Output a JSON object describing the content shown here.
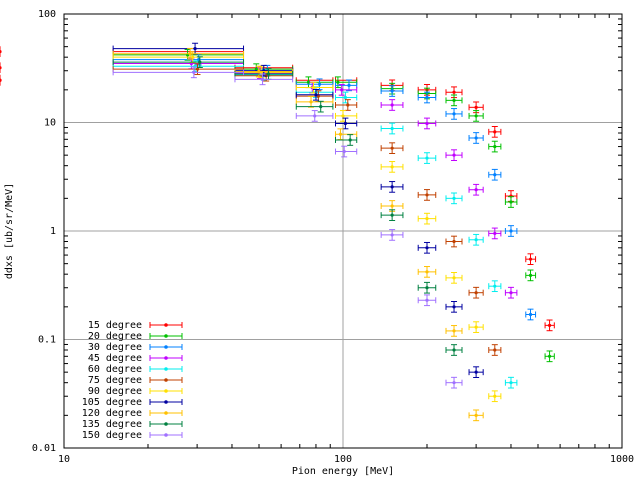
{
  "chart_data": {
    "type": "scatter",
    "xlabel": "Pion energy [MeV]",
    "ylabel": "ddxs [ub/sr/MeV]",
    "xscale": "log",
    "yscale": "log",
    "xlim": [
      10,
      1000
    ],
    "ylim": [
      0.01,
      100
    ],
    "grid": "major ticks",
    "legend_position": "bottom-left",
    "x_tick_labels": [
      "10",
      "100",
      "1000"
    ],
    "y_tick_labels": [
      "0.01",
      "0.1",
      "1",
      "10",
      "100"
    ],
    "series": [
      {
        "name": "15 degree",
        "color": "#ff0000",
        "marker": "plus",
        "x": [
          29.5,
          52,
          80,
          102,
          150,
          200,
          250,
          300,
          350,
          400,
          470,
          550
        ],
        "xerr": [
          [
            15,
            44
          ],
          [
            42,
            65
          ],
          [
            70,
            90
          ],
          [
            95,
            110
          ],
          [
            135,
            165
          ],
          [
            185,
            215
          ],
          [
            235,
            265
          ],
          [
            285,
            320
          ],
          [
            335,
            365
          ],
          [
            385,
            415
          ],
          [
            455,
            485
          ],
          [
            530,
            570
          ]
        ],
        "y": [
          45,
          32,
          24.5,
          24.5,
          22,
          20,
          19,
          13.8,
          8.2,
          2.1,
          0.55,
          0.135
        ]
      },
      {
        "name": "20 degree",
        "color": "#00c000",
        "marker": "cross",
        "x": [
          29.5,
          52,
          80,
          102,
          150,
          200,
          250,
          300,
          350,
          400,
          470,
          550
        ],
        "y": [
          42,
          31,
          23.5,
          23.5,
          20.5,
          18.5,
          16,
          11.5,
          6,
          1.85,
          0.39,
          0.07
        ]
      },
      {
        "name": "30 degree",
        "color": "#0080ff",
        "marker": "star",
        "x": [
          29.5,
          52,
          80,
          102,
          150,
          200,
          250,
          300,
          350,
          400,
          470
        ],
        "y": [
          38,
          30,
          22.5,
          22,
          19.5,
          17,
          12,
          7.2,
          3.3,
          1.0,
          0.17
        ]
      },
      {
        "name": "45 degree",
        "color": "#c000ff",
        "marker": "square",
        "x": [
          29.5,
          52,
          80,
          102,
          150,
          200,
          250,
          300,
          350,
          400
        ],
        "y": [
          35,
          28.5,
          21,
          20,
          14.5,
          9.8,
          5.0,
          2.4,
          0.95,
          0.27
        ]
      },
      {
        "name": "60 degree",
        "color": "#00eeee",
        "marker": "filled-square",
        "x": [
          29.5,
          52,
          80,
          102,
          150,
          200,
          250,
          300,
          350,
          400
        ],
        "y": [
          33,
          27.5,
          19,
          17,
          8.8,
          4.7,
          2.0,
          0.83,
          0.31,
          0.04
        ]
      },
      {
        "name": "75 degree",
        "color": "#c04000",
        "marker": "circle",
        "x": [
          29.5,
          52,
          80,
          102,
          150,
          200,
          250,
          300,
          350
        ],
        "y": [
          31,
          27,
          17.5,
          14.5,
          5.8,
          2.15,
          0.8,
          0.27,
          0.08
        ]
      },
      {
        "name": "90 degree",
        "color": "#ffe000",
        "marker": "filled-circle",
        "x": [
          29.5,
          52,
          80,
          102,
          150,
          200,
          250,
          300,
          350
        ],
        "y": [
          40,
          29,
          21,
          11.5,
          3.9,
          1.3,
          0.37,
          0.13,
          0.03
        ]
      },
      {
        "name": "105 degree",
        "color": "#0000a0",
        "marker": "triangle",
        "x": [
          29.5,
          52,
          80,
          102,
          150,
          200,
          250,
          300
        ],
        "y": [
          48,
          30,
          18,
          9.8,
          2.55,
          0.7,
          0.2,
          0.05
        ]
      },
      {
        "name": "120 degree",
        "color": "#ffc000",
        "marker": "filled-triangle",
        "x": [
          29.5,
          52,
          80,
          102,
          150,
          200,
          250,
          300
        ],
        "y": [
          43,
          29.5,
          15.5,
          7.8,
          1.7,
          0.42,
          0.12,
          0.02
        ]
      },
      {
        "name": "135 degree",
        "color": "#008040",
        "marker": "inverted-triangle",
        "x": [
          29.5,
          52,
          80,
          102,
          150,
          200,
          250
        ],
        "y": [
          36,
          28,
          14,
          6.9,
          1.4,
          0.3,
          0.08
        ]
      },
      {
        "name": "150 degree",
        "color": "#a070ff",
        "marker": "filled-inverted-triangle",
        "x": [
          29.5,
          52,
          80,
          102,
          150,
          200,
          250
        ],
        "y": [
          29,
          25,
          11.5,
          5.4,
          0.92,
          0.23,
          0.04
        ]
      }
    ]
  }
}
